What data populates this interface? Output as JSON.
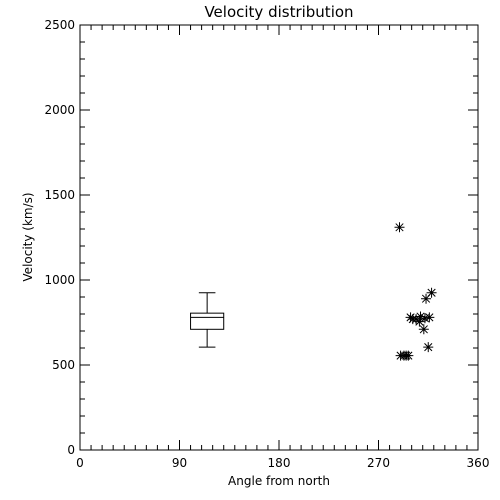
{
  "chart_data": {
    "type": "scatter",
    "title": "Velocity distribution",
    "xlabel": "Angle from north",
    "ylabel": "Velocity (km/s)",
    "xlim": [
      0,
      360
    ],
    "ylim": [
      0,
      2500
    ],
    "x_major_ticks": [
      0,
      90,
      180,
      270,
      360
    ],
    "x_minor_step": 10,
    "y_major_ticks": [
      0,
      500,
      1000,
      1500,
      2000,
      2500
    ],
    "y_minor_step": 100,
    "grid": false,
    "marker": "asterisk",
    "color": "#000000",
    "box": {
      "x": 115,
      "width": 30,
      "min": 605,
      "q1": 710,
      "median": 780,
      "q3": 805,
      "max": 925
    },
    "points": [
      {
        "x": 289,
        "y": 1310
      },
      {
        "x": 290,
        "y": 555
      },
      {
        "x": 293,
        "y": 555
      },
      {
        "x": 295,
        "y": 555
      },
      {
        "x": 297,
        "y": 555
      },
      {
        "x": 299,
        "y": 780
      },
      {
        "x": 301,
        "y": 770
      },
      {
        "x": 304,
        "y": 770
      },
      {
        "x": 307,
        "y": 755
      },
      {
        "x": 308,
        "y": 785
      },
      {
        "x": 311,
        "y": 710
      },
      {
        "x": 312,
        "y": 775
      },
      {
        "x": 313,
        "y": 890
      },
      {
        "x": 315,
        "y": 605
      },
      {
        "x": 316,
        "y": 780
      },
      {
        "x": 318,
        "y": 925
      }
    ]
  }
}
